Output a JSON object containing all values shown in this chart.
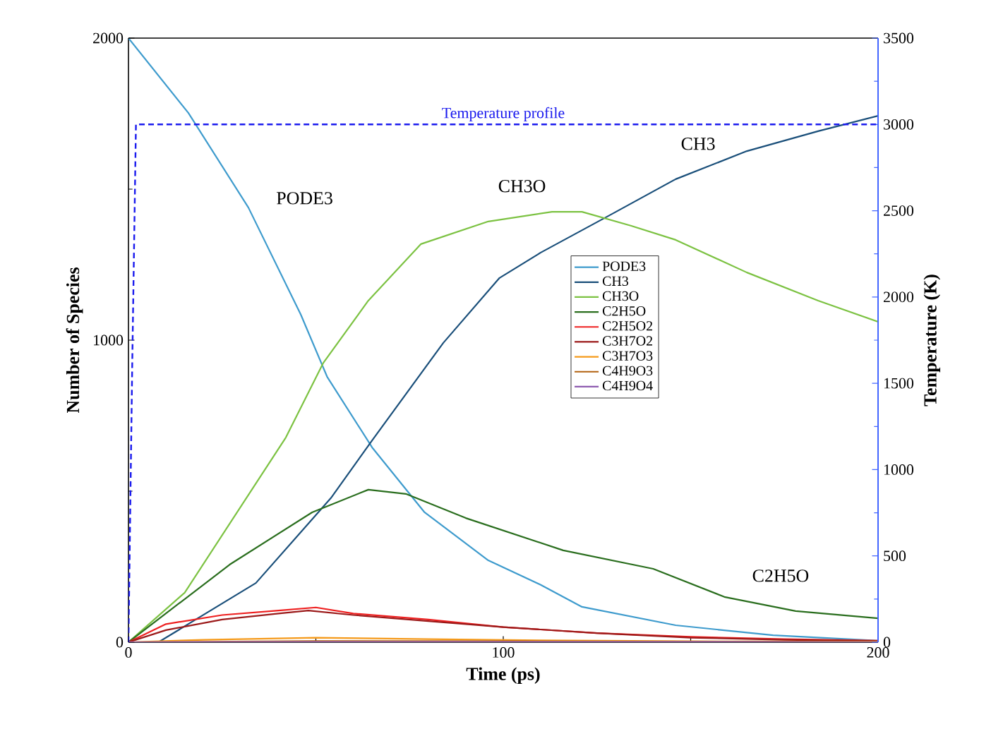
{
  "chart_data": {
    "type": "line",
    "xlabel": "Time (ps)",
    "ylabel": "Number of Species",
    "y2label": "Temperature (K)",
    "xlim": [
      0,
      200
    ],
    "xticks": [
      0,
      100,
      200
    ],
    "ylim": [
      0,
      2000
    ],
    "yticks": [
      0,
      1000,
      2000
    ],
    "y2lim": [
      0,
      3500
    ],
    "y2ticks": [
      0,
      500,
      1000,
      1500,
      2000,
      2500,
      3000,
      3500
    ],
    "legend": "right",
    "grid": false,
    "series": [
      {
        "name": "PODE3",
        "color": "#3e9bcd",
        "x": [
          0,
          16,
          32,
          46,
          53,
          65,
          79,
          96,
          110,
          121,
          146,
          172,
          200
        ],
        "values": [
          2000,
          1752,
          1439,
          1084,
          879,
          645,
          430,
          271,
          190,
          117,
          56,
          23,
          5
        ]
      },
      {
        "name": "CH3",
        "color": "#1a4f7a",
        "x": [
          0,
          8,
          34,
          54,
          65,
          84,
          99,
          110,
          128,
          146,
          165,
          184,
          200
        ],
        "values": [
          0,
          0,
          196,
          477,
          668,
          991,
          1206,
          1290,
          1411,
          1533,
          1626,
          1692,
          1743
        ]
      },
      {
        "name": "CH3O",
        "color": "#7cc242",
        "x": [
          0,
          15,
          42,
          52,
          64,
          78,
          96,
          113,
          121,
          134,
          146,
          165,
          184,
          200
        ],
        "values": [
          0,
          164,
          678,
          925,
          1131,
          1318,
          1393,
          1425,
          1425,
          1379,
          1332,
          1224,
          1131,
          1061
        ]
      },
      {
        "name": "C2H5O",
        "color": "#2a6e1e",
        "x": [
          0,
          27,
          49,
          64,
          74,
          90,
          116,
          140,
          159,
          178,
          200
        ],
        "values": [
          0,
          257,
          430,
          505,
          491,
          411,
          304,
          243,
          150,
          103,
          79
        ]
      },
      {
        "name": "C2H5O2",
        "color": "#ee2020",
        "x": [
          0,
          10,
          25,
          40,
          50,
          60,
          80,
          100,
          125,
          150,
          175,
          200
        ],
        "values": [
          0,
          60,
          90,
          105,
          115,
          95,
          75,
          50,
          30,
          18,
          10,
          5
        ]
      },
      {
        "name": "C3H7O2",
        "color": "#9b1a1a",
        "x": [
          0,
          10,
          25,
          40,
          48,
          60,
          80,
          100,
          125,
          150,
          175,
          200
        ],
        "values": [
          0,
          40,
          75,
          95,
          105,
          90,
          70,
          50,
          30,
          15,
          8,
          4
        ]
      },
      {
        "name": "C3H7O3",
        "color": "#f59a1a",
        "x": [
          0,
          20,
          50,
          80,
          110,
          150,
          200
        ],
        "values": [
          0,
          8,
          15,
          10,
          6,
          3,
          2
        ]
      },
      {
        "name": "C4H9O3",
        "color": "#b2600e",
        "x": [
          0,
          50,
          100,
          150,
          200
        ],
        "values": [
          0,
          4,
          3,
          2,
          1
        ]
      },
      {
        "name": "C4H9O4",
        "color": "#8e5cb0",
        "x": [
          0,
          50,
          100,
          150,
          200
        ],
        "values": [
          0,
          1,
          1,
          1,
          0
        ]
      },
      {
        "name": "Temperature profile",
        "axis": "y2",
        "line_style": "dashed",
        "color": "#1a1aee",
        "x": [
          0,
          1,
          2,
          200
        ],
        "values": [
          0,
          1600,
          3000,
          3000
        ]
      }
    ],
    "annotations": [
      "PODE3",
      "CH3O",
      "CH3",
      "C2H5O"
    ]
  }
}
